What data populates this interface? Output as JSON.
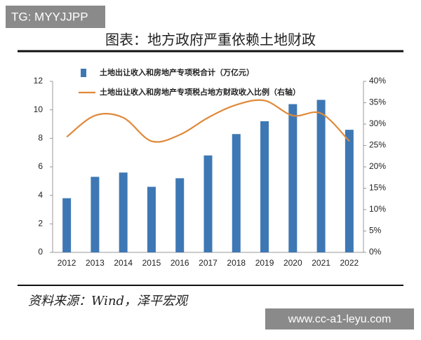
{
  "watermark": "TG: MYYJJPP",
  "source": "资料来源：Wind，泽平宏观",
  "site_watermark": "www.cc-a1-leyu.com",
  "chart_data": {
    "type": "bar_line",
    "title": "图表：地方政府严重依赖土地财政",
    "categories": [
      "2012",
      "2013",
      "2014",
      "2015",
      "2016",
      "2017",
      "2018",
      "2019",
      "2020",
      "2021",
      "2022"
    ],
    "series": [
      {
        "name": "土地出让收入和房地产专项税合计（万亿元）",
        "type": "bar",
        "color": "#3e78b4",
        "values": [
          3.8,
          5.3,
          5.6,
          4.6,
          5.2,
          6.8,
          8.3,
          9.2,
          10.4,
          10.7,
          8.6
        ]
      },
      {
        "name": "土地出让收入和房地产专项税占地方财政收入比例（右轴）",
        "type": "line",
        "axis": "y2",
        "color": "#e0893a",
        "values": [
          27,
          32,
          31.5,
          26,
          27.5,
          31.5,
          34.5,
          35.5,
          32,
          32.5,
          26
        ]
      }
    ],
    "ylim": [
      0,
      12
    ],
    "yticks": [
      0,
      2,
      4,
      6,
      8,
      10,
      12
    ],
    "y2lim": [
      0,
      40
    ],
    "y2ticks": [
      {
        "value": 0,
        "label": "0%"
      },
      {
        "value": 5,
        "label": "5%"
      },
      {
        "value": 10,
        "label": "10%"
      },
      {
        "value": 15,
        "label": "15%"
      },
      {
        "value": 20,
        "label": "20%"
      },
      {
        "value": 25,
        "label": "25%"
      },
      {
        "value": 30,
        "label": "30%"
      },
      {
        "value": 35,
        "label": "35%"
      },
      {
        "value": 40,
        "label": "40%"
      }
    ]
  }
}
